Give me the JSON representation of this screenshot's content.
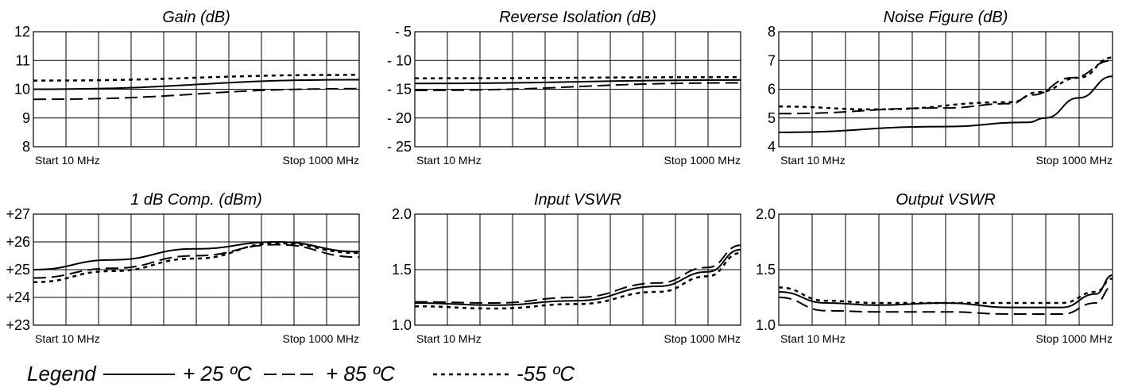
{
  "chart_data": [
    {
      "type": "line",
      "title": "Gain (dB)",
      "y_ticks": [
        "12",
        "11",
        "10",
        "9",
        "8"
      ],
      "ylim": [
        8,
        12
      ],
      "x_start_label": "Start 10  MHz",
      "x_stop_label": "Stop  1000  MHz",
      "xlim": [
        10,
        1000
      ],
      "grid": true,
      "series": [
        {
          "name": "+ 25 ºC",
          "style": "solid",
          "x": [
            10,
            1000
          ],
          "y": [
            10.0,
            10.33
          ]
        },
        {
          "name": "+ 85 ºC",
          "style": "dashed",
          "x": [
            10,
            1000
          ],
          "y": [
            9.65,
            10.02
          ]
        },
        {
          "name": "-55 ºC",
          "style": "dotted",
          "x": [
            10,
            1000
          ],
          "y": [
            10.3,
            10.5
          ]
        }
      ]
    },
    {
      "type": "line",
      "title": "Reverse Isolation (dB)",
      "y_ticks": [
        "-  5",
        "- 10",
        "- 15",
        "- 20",
        "- 25"
      ],
      "ylim": [
        -25,
        -5
      ],
      "x_start_label": "Start 10  MHz",
      "x_stop_label": "Stop  1000  MHz",
      "xlim": [
        10,
        1000
      ],
      "grid": true,
      "series": [
        {
          "name": "+ 25 ºC",
          "style": "solid",
          "x": [
            10,
            1000
          ],
          "y": [
            -14.0,
            -13.4
          ]
        },
        {
          "name": "+ 85 ºC",
          "style": "dashed",
          "x": [
            10,
            1000
          ],
          "y": [
            -15.2,
            -13.9
          ]
        },
        {
          "name": "-55 ºC",
          "style": "dotted",
          "x": [
            10,
            1000
          ],
          "y": [
            -13.1,
            -12.9
          ]
        }
      ]
    },
    {
      "type": "line",
      "title": "Noise Figure (dB)",
      "y_ticks": [
        "8",
        "7",
        "6",
        "5",
        "4"
      ],
      "ylim": [
        4,
        8
      ],
      "x_start_label": "Start 10  MHz",
      "x_stop_label": "Stop  1000  MHz",
      "xlim": [
        10,
        1000
      ],
      "grid": true,
      "series": [
        {
          "name": "+ 25 ºC",
          "style": "solid",
          "x": [
            10,
            500,
            750,
            800,
            900,
            1000
          ],
          "y": [
            4.5,
            4.7,
            4.85,
            5.0,
            5.7,
            6.45
          ]
        },
        {
          "name": "+ 85 ºC",
          "style": "dashed",
          "x": [
            10,
            500,
            700,
            760,
            880,
            1000
          ],
          "y": [
            5.15,
            5.35,
            5.5,
            5.8,
            6.4,
            7.0
          ]
        },
        {
          "name": "-55 ºC",
          "style": "dotted",
          "x": [
            10,
            300,
            700,
            780,
            900,
            1000
          ],
          "y": [
            5.4,
            5.3,
            5.55,
            5.9,
            6.4,
            7.1
          ]
        }
      ]
    },
    {
      "type": "line",
      "title": "1 dB Comp. (dBm)",
      "y_ticks": [
        "+27",
        "+26",
        "+25",
        "+24",
        "+23"
      ],
      "ylim": [
        23,
        27
      ],
      "x_start_label": "Start 10  MHz",
      "x_stop_label": "Stop  1000  MHz",
      "xlim": [
        10,
        1000
      ],
      "grid": true,
      "series": [
        {
          "name": "+ 25 ºC",
          "style": "solid",
          "x": [
            10,
            250,
            500,
            750,
            1000
          ],
          "y": [
            25.0,
            25.35,
            25.75,
            26.0,
            25.65
          ]
        },
        {
          "name": "+ 85 ºC",
          "style": "dashed",
          "x": [
            10,
            250,
            500,
            750,
            1000
          ],
          "y": [
            24.7,
            25.05,
            25.5,
            25.9,
            25.45
          ]
        },
        {
          "name": "-55 ºC",
          "style": "dotted",
          "x": [
            10,
            250,
            500,
            750,
            1000
          ],
          "y": [
            24.55,
            24.95,
            25.4,
            25.95,
            25.6
          ]
        }
      ]
    },
    {
      "type": "line",
      "title": "Input VSWR",
      "y_ticks": [
        "2.0",
        "1.5",
        "1.0"
      ],
      "ylim": [
        1.0,
        2.0
      ],
      "x_start_label": "Start 10  MHz",
      "x_stop_label": "Stop  1000  MHz",
      "xlim": [
        10,
        1000
      ],
      "grid": true,
      "series": [
        {
          "name": "+ 25 ºC",
          "style": "solid",
          "x": [
            10,
            250,
            500,
            750,
            900,
            1000
          ],
          "y": [
            1.2,
            1.18,
            1.22,
            1.35,
            1.48,
            1.68
          ]
        },
        {
          "name": "+ 85 ºC",
          "style": "dashed",
          "x": [
            10,
            250,
            500,
            750,
            900,
            1000
          ],
          "y": [
            1.21,
            1.2,
            1.25,
            1.38,
            1.52,
            1.72
          ]
        },
        {
          "name": "-55 ºC",
          "style": "dotted",
          "x": [
            10,
            250,
            500,
            750,
            900,
            1000
          ],
          "y": [
            1.17,
            1.15,
            1.19,
            1.3,
            1.44,
            1.65
          ]
        }
      ]
    },
    {
      "type": "line",
      "title": "Output VSWR",
      "y_ticks": [
        "2.0",
        "1.5",
        "1.0"
      ],
      "ylim": [
        1.0,
        2.0
      ],
      "x_start_label": "Start 10  MHz",
      "x_stop_label": "Stop  1000  MHz",
      "xlim": [
        10,
        1000
      ],
      "grid": true,
      "series": [
        {
          "name": "+ 25 ºC",
          "style": "solid",
          "x": [
            10,
            150,
            300,
            500,
            700,
            850,
            950,
            1000
          ],
          "y": [
            1.3,
            1.2,
            1.18,
            1.2,
            1.16,
            1.16,
            1.28,
            1.45
          ]
        },
        {
          "name": "+ 85 ºC",
          "style": "dashed",
          "x": [
            10,
            150,
            300,
            500,
            700,
            850,
            950,
            1000
          ],
          "y": [
            1.25,
            1.13,
            1.12,
            1.12,
            1.1,
            1.1,
            1.2,
            1.35
          ]
        },
        {
          "name": "-55 ºC",
          "style": "dotted",
          "x": [
            10,
            150,
            300,
            500,
            700,
            850,
            950,
            1000
          ],
          "y": [
            1.34,
            1.22,
            1.2,
            1.2,
            1.2,
            1.2,
            1.3,
            1.42
          ]
        }
      ]
    }
  ],
  "legend": {
    "label": "Legend",
    "entries": [
      {
        "name": "+ 25 ºC",
        "style": "solid"
      },
      {
        "name": "+ 85 ºC",
        "style": "dashed"
      },
      {
        "name": "-55 ºC",
        "style": "dotted"
      }
    ]
  }
}
